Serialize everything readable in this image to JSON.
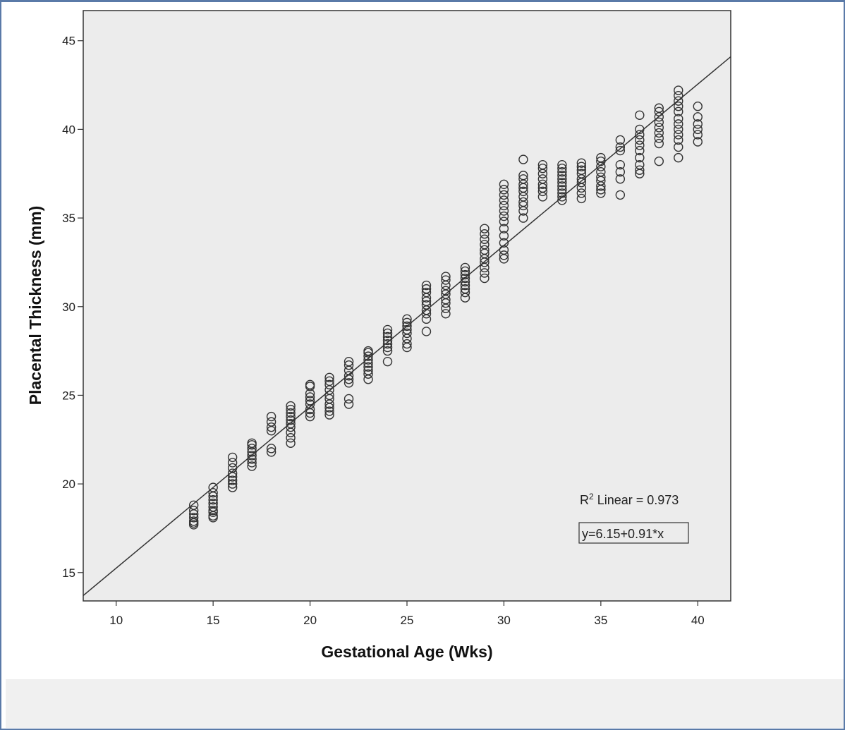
{
  "chart_data": {
    "type": "scatter",
    "xlabel": "Gestational Age (Wks)",
    "ylabel": "Placental Thickness (mm)",
    "xlim": [
      8.3,
      41.7
    ],
    "ylim": [
      13.4,
      46.7
    ],
    "xticks": [
      "10",
      "15",
      "20",
      "25",
      "30",
      "35",
      "40"
    ],
    "yticks": [
      "15",
      "20",
      "25",
      "30",
      "35",
      "40",
      "45"
    ],
    "grid": false,
    "fit_line": {
      "intercept": 6.15,
      "slope": 0.91
    },
    "annotations": {
      "r2_prefix": "R",
      "r2_sup": "2",
      "r2_text": " Linear = 0.973",
      "equation": "y=6.15+0.91*x"
    },
    "points": [
      [
        14,
        18.8
      ],
      [
        14,
        18.5
      ],
      [
        14,
        18.3
      ],
      [
        14,
        18.1
      ],
      [
        14,
        17.9
      ],
      [
        14,
        17.8
      ],
      [
        14,
        17.7
      ],
      [
        15,
        19.8
      ],
      [
        15,
        19.5
      ],
      [
        15,
        19.3
      ],
      [
        15,
        19.1
      ],
      [
        15,
        18.9
      ],
      [
        15,
        18.7
      ],
      [
        15,
        18.5
      ],
      [
        15,
        18.4
      ],
      [
        15,
        18.2
      ],
      [
        15,
        18.1
      ],
      [
        16,
        21.5
      ],
      [
        16,
        21.2
      ],
      [
        16,
        20.9
      ],
      [
        16,
        20.6
      ],
      [
        16,
        20.4
      ],
      [
        16,
        20.2
      ],
      [
        16,
        20.0
      ],
      [
        16,
        19.8
      ],
      [
        17,
        22.3
      ],
      [
        17,
        22.2
      ],
      [
        17,
        22.0
      ],
      [
        17,
        21.8
      ],
      [
        17,
        21.6
      ],
      [
        17,
        21.4
      ],
      [
        17,
        21.2
      ],
      [
        17,
        21.0
      ],
      [
        18,
        23.8
      ],
      [
        18,
        23.5
      ],
      [
        18,
        23.2
      ],
      [
        18,
        23.0
      ],
      [
        18,
        22.0
      ],
      [
        18,
        21.8
      ],
      [
        19,
        24.4
      ],
      [
        19,
        24.2
      ],
      [
        19,
        24.0
      ],
      [
        19,
        23.8
      ],
      [
        19,
        23.6
      ],
      [
        19,
        23.4
      ],
      [
        19,
        23.2
      ],
      [
        19,
        22.9
      ],
      [
        19,
        22.6
      ],
      [
        19,
        22.3
      ],
      [
        20,
        25.6
      ],
      [
        20,
        25.5
      ],
      [
        20,
        25.1
      ],
      [
        20,
        24.9
      ],
      [
        20,
        24.7
      ],
      [
        20,
        24.5
      ],
      [
        20,
        24.2
      ],
      [
        20,
        24.0
      ],
      [
        20,
        23.8
      ],
      [
        21,
        26.0
      ],
      [
        21,
        25.8
      ],
      [
        21,
        25.6
      ],
      [
        21,
        25.3
      ],
      [
        21,
        25.0
      ],
      [
        21,
        24.8
      ],
      [
        21,
        24.5
      ],
      [
        21,
        24.3
      ],
      [
        21,
        24.1
      ],
      [
        21,
        23.9
      ],
      [
        22,
        26.9
      ],
      [
        22,
        26.7
      ],
      [
        22,
        26.4
      ],
      [
        22,
        26.1
      ],
      [
        22,
        25.9
      ],
      [
        22,
        25.7
      ],
      [
        22,
        24.8
      ],
      [
        22,
        24.5
      ],
      [
        23,
        27.5
      ],
      [
        23,
        27.4
      ],
      [
        23,
        27.2
      ],
      [
        23,
        27.0
      ],
      [
        23,
        26.8
      ],
      [
        23,
        26.6
      ],
      [
        23,
        26.4
      ],
      [
        23,
        26.2
      ],
      [
        23,
        25.9
      ],
      [
        24,
        28.7
      ],
      [
        24,
        28.5
      ],
      [
        24,
        28.3
      ],
      [
        24,
        28.1
      ],
      [
        24,
        27.9
      ],
      [
        24,
        27.7
      ],
      [
        24,
        27.5
      ],
      [
        24,
        26.9
      ],
      [
        25,
        29.3
      ],
      [
        25,
        29.1
      ],
      [
        25,
        28.9
      ],
      [
        25,
        28.7
      ],
      [
        25,
        28.5
      ],
      [
        25,
        28.2
      ],
      [
        25,
        27.9
      ],
      [
        25,
        27.7
      ],
      [
        26,
        31.2
      ],
      [
        26,
        31.0
      ],
      [
        26,
        30.8
      ],
      [
        26,
        30.5
      ],
      [
        26,
        30.3
      ],
      [
        26,
        30.1
      ],
      [
        26,
        29.8
      ],
      [
        26,
        29.6
      ],
      [
        26,
        29.3
      ],
      [
        26,
        28.6
      ],
      [
        27,
        31.7
      ],
      [
        27,
        31.5
      ],
      [
        27,
        31.2
      ],
      [
        27,
        30.9
      ],
      [
        27,
        30.7
      ],
      [
        27,
        30.4
      ],
      [
        27,
        30.2
      ],
      [
        27,
        29.9
      ],
      [
        27,
        29.6
      ],
      [
        28,
        32.2
      ],
      [
        28,
        32.0
      ],
      [
        28,
        31.8
      ],
      [
        28,
        31.6
      ],
      [
        28,
        31.4
      ],
      [
        28,
        31.2
      ],
      [
        28,
        31.0
      ],
      [
        28,
        30.8
      ],
      [
        28,
        30.5
      ],
      [
        29,
        34.4
      ],
      [
        29,
        34.1
      ],
      [
        29,
        33.8
      ],
      [
        29,
        33.5
      ],
      [
        29,
        33.2
      ],
      [
        29,
        33.0
      ],
      [
        29,
        32.7
      ],
      [
        29,
        32.5
      ],
      [
        29,
        32.2
      ],
      [
        29,
        31.9
      ],
      [
        29,
        31.6
      ],
      [
        30,
        36.9
      ],
      [
        30,
        36.6
      ],
      [
        30,
        36.3
      ],
      [
        30,
        36.0
      ],
      [
        30,
        35.7
      ],
      [
        30,
        35.4
      ],
      [
        30,
        35.1
      ],
      [
        30,
        34.8
      ],
      [
        30,
        34.4
      ],
      [
        30,
        34.0
      ],
      [
        30,
        33.6
      ],
      [
        30,
        33.2
      ],
      [
        30,
        32.9
      ],
      [
        30,
        32.7
      ],
      [
        31,
        38.3
      ],
      [
        31,
        37.4
      ],
      [
        31,
        37.2
      ],
      [
        31,
        36.9
      ],
      [
        31,
        36.7
      ],
      [
        31,
        36.5
      ],
      [
        31,
        36.2
      ],
      [
        31,
        35.9
      ],
      [
        31,
        35.7
      ],
      [
        31,
        35.4
      ],
      [
        31,
        35.0
      ],
      [
        32,
        38.0
      ],
      [
        32,
        37.8
      ],
      [
        32,
        37.5
      ],
      [
        32,
        37.2
      ],
      [
        32,
        36.9
      ],
      [
        32,
        36.7
      ],
      [
        32,
        36.5
      ],
      [
        32,
        36.2
      ],
      [
        33,
        38.0
      ],
      [
        33,
        37.8
      ],
      [
        33,
        37.6
      ],
      [
        33,
        37.4
      ],
      [
        33,
        37.2
      ],
      [
        33,
        37.0
      ],
      [
        33,
        36.8
      ],
      [
        33,
        36.6
      ],
      [
        33,
        36.4
      ],
      [
        33,
        36.2
      ],
      [
        33,
        36.0
      ],
      [
        34,
        38.1
      ],
      [
        34,
        37.9
      ],
      [
        34,
        37.7
      ],
      [
        34,
        37.5
      ],
      [
        34,
        37.2
      ],
      [
        34,
        37.0
      ],
      [
        34,
        36.7
      ],
      [
        34,
        36.4
      ],
      [
        34,
        36.1
      ],
      [
        35,
        38.4
      ],
      [
        35,
        38.2
      ],
      [
        35,
        37.9
      ],
      [
        35,
        37.6
      ],
      [
        35,
        37.3
      ],
      [
        35,
        37.1
      ],
      [
        35,
        36.8
      ],
      [
        35,
        36.6
      ],
      [
        35,
        36.4
      ],
      [
        36,
        39.4
      ],
      [
        36,
        39.0
      ],
      [
        36,
        38.8
      ],
      [
        36,
        38.0
      ],
      [
        36,
        37.6
      ],
      [
        36,
        37.2
      ],
      [
        36,
        36.3
      ],
      [
        37,
        40.8
      ],
      [
        37,
        40.0
      ],
      [
        37,
        39.7
      ],
      [
        37,
        39.4
      ],
      [
        37,
        39.1
      ],
      [
        37,
        38.8
      ],
      [
        37,
        38.4
      ],
      [
        37,
        38.0
      ],
      [
        37,
        37.7
      ],
      [
        37,
        37.5
      ],
      [
        38,
        41.2
      ],
      [
        38,
        41.0
      ],
      [
        38,
        40.7
      ],
      [
        38,
        40.4
      ],
      [
        38,
        40.1
      ],
      [
        38,
        39.8
      ],
      [
        38,
        39.5
      ],
      [
        38,
        39.2
      ],
      [
        38,
        38.2
      ],
      [
        39,
        42.2
      ],
      [
        39,
        41.9
      ],
      [
        39,
        41.6
      ],
      [
        39,
        41.3
      ],
      [
        39,
        41.0
      ],
      [
        39,
        40.6
      ],
      [
        39,
        40.3
      ],
      [
        39,
        40.0
      ],
      [
        39,
        39.7
      ],
      [
        39,
        39.4
      ],
      [
        39,
        39.0
      ],
      [
        39,
        38.4
      ],
      [
        40,
        41.3
      ],
      [
        40,
        40.7
      ],
      [
        40,
        40.3
      ],
      [
        40,
        40.0
      ],
      [
        40,
        39.7
      ],
      [
        40,
        39.3
      ]
    ]
  }
}
